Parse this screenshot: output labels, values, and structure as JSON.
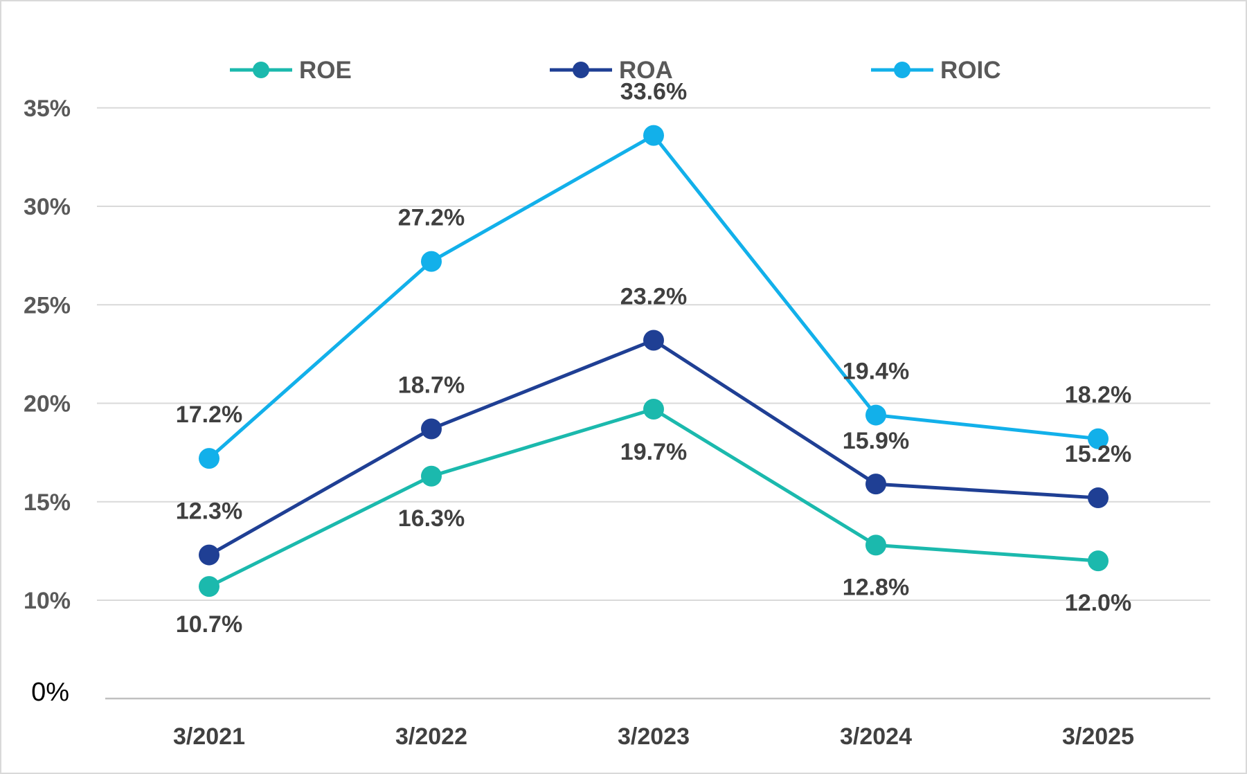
{
  "chart_data": {
    "type": "line",
    "categories": [
      "3/2021",
      "3/2022",
      "3/2023",
      "3/2024",
      "3/2025"
    ],
    "y_ticks": [
      "0%",
      "10%",
      "15%",
      "20%",
      "25%",
      "30%",
      "35%"
    ],
    "y_tick_values": [
      0,
      10,
      15,
      20,
      25,
      30,
      35
    ],
    "grid": true,
    "legend": "top",
    "series": [
      {
        "name": "ROE",
        "color": "#1bb9ad",
        "values": [
          10.7,
          16.3,
          19.7,
          12.8,
          12.0
        ],
        "labels": [
          "10.7%",
          "16.3%",
          "19.7%",
          "12.8%",
          "12.0%"
        ]
      },
      {
        "name": "ROA",
        "color": "#1f3f94",
        "values": [
          12.3,
          18.7,
          23.2,
          15.9,
          15.2
        ],
        "labels": [
          "12.3%",
          "18.7%",
          "23.2%",
          "15.9%",
          "15.2%"
        ]
      },
      {
        "name": "ROIC",
        "color": "#12b0ea",
        "values": [
          17.2,
          27.2,
          33.6,
          19.4,
          18.2
        ],
        "labels": [
          "17.2%",
          "27.2%",
          "33.6%",
          "19.4%",
          "18.2%"
        ]
      }
    ]
  }
}
